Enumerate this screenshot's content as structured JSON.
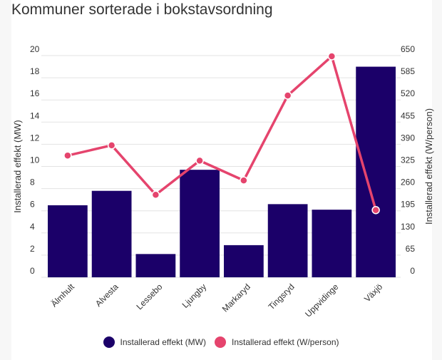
{
  "title": "Kommuner sorterade i bokstavsordning",
  "chart_data": {
    "type": "bar+line",
    "title": "Kommuner sorterade i bokstavsordning",
    "categories": [
      "Älmhult",
      "Alvesta",
      "Lessebo",
      "Ljungby",
      "Markaryd",
      "Tingsryd",
      "Uppvidinge",
      "Växjö"
    ],
    "series": [
      {
        "name": "Installerad effekt (MW)",
        "type": "bar",
        "axis": "left",
        "color": "#1b0069",
        "values": [
          6.5,
          7.8,
          2.1,
          9.7,
          2.9,
          6.6,
          6.1,
          19.0
        ]
      },
      {
        "name": "Installerad effekt (W/person)",
        "type": "line",
        "axis": "right",
        "color": "#e5446d",
        "values": [
          357,
          387,
          242,
          342,
          284,
          533,
          648,
          197
        ]
      }
    ],
    "ylabel": "Installerad effekt (MW)",
    "y2label": "Installerad effekt (W/person)",
    "ylim": [
      0,
      20
    ],
    "y2lim": [
      0,
      650
    ],
    "yticks": [
      0,
      2,
      4,
      6,
      8,
      10,
      12,
      14,
      16,
      18,
      20
    ],
    "y2ticks": [
      0,
      65,
      130,
      195,
      260,
      325,
      390,
      455,
      520,
      585,
      650
    ],
    "grid": true,
    "legend": "bottom"
  }
}
